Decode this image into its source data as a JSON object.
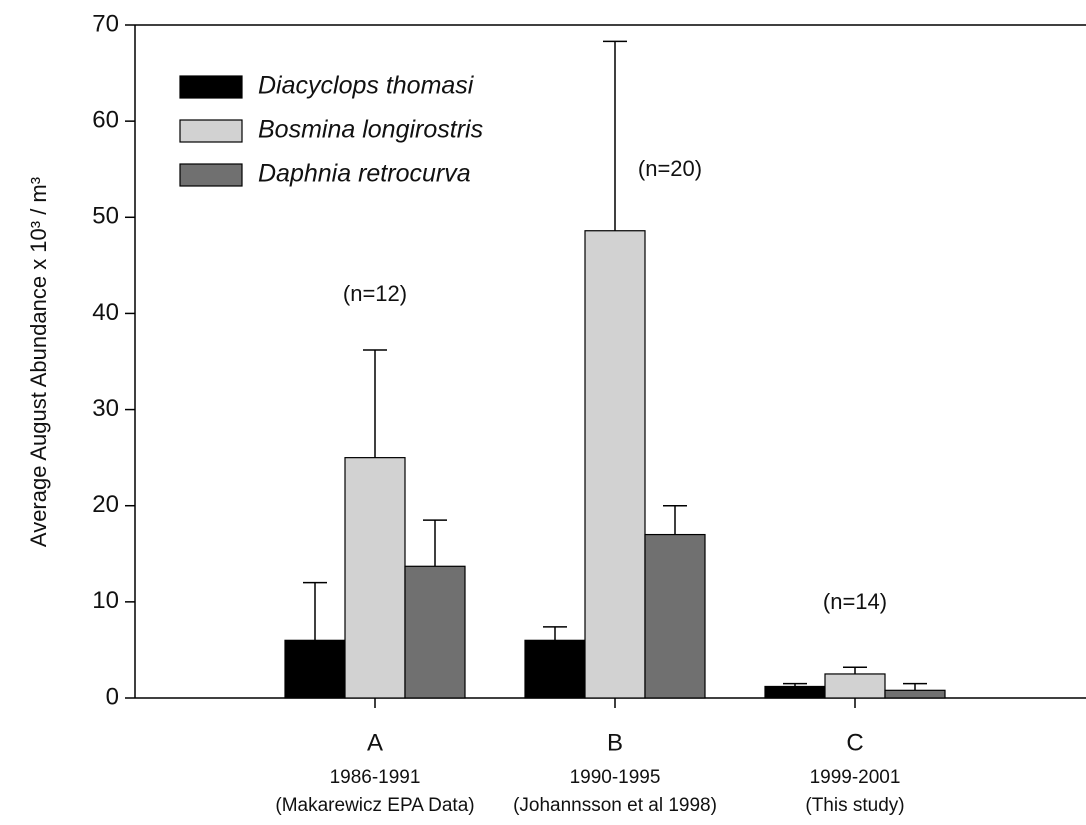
{
  "chart_data": {
    "type": "bar",
    "y_label": "Average August Abundance x 10³ / m³",
    "categories": [
      "A",
      "B",
      "C"
    ],
    "periods": [
      "1986-1991",
      "1990-1995",
      "1999-2001"
    ],
    "sources": [
      "(Makarewicz EPA Data)",
      "(Johannsson et al 1998)",
      "(This study)"
    ],
    "annotations": [
      "(n=12)",
      "(n=20)",
      "(n=14)"
    ],
    "series": [
      {
        "name": "Diacyclops thomasi",
        "color": "#000000",
        "values": [
          6,
          6,
          1.2
        ],
        "errors": [
          6,
          1.4,
          0.3
        ]
      },
      {
        "name": "Bosmina longirostris",
        "color": "#d2d2d2",
        "values": [
          25,
          48.6,
          2.5
        ],
        "errors": [
          11.2,
          19.7,
          0.7
        ]
      },
      {
        "name": "Daphnia retrocurva",
        "color": "#707070",
        "values": [
          13.7,
          17,
          0.8
        ],
        "errors": [
          4.8,
          3,
          0.7
        ]
      }
    ],
    "ylim": [
      0,
      70
    ],
    "yticks": [
      0,
      10,
      20,
      30,
      40,
      50,
      60,
      70
    ],
    "legend": "upper left"
  }
}
